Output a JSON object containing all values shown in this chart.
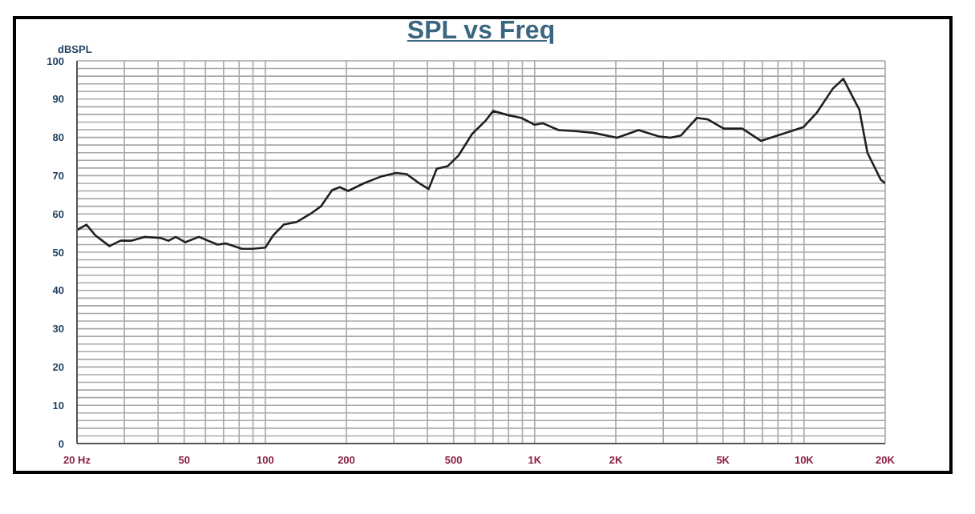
{
  "chart_data": {
    "type": "line",
    "title": "SPL vs Freq",
    "ylabel": "dBSPL",
    "log": "x",
    "grid": true,
    "x": [
      20,
      21.7,
      23.4,
      26.4,
      29,
      31.8,
      35.6,
      40.9,
      43.8,
      46.5,
      50.5,
      56.7,
      66.5,
      71.3,
      81.9,
      89.8,
      100,
      107,
      117,
      131,
      147,
      161,
      177,
      189,
      203,
      232,
      267,
      306,
      335,
      368,
      404,
      433,
      476,
      522,
      586,
      658,
      701,
      797,
      892,
      1000,
      1071,
      1227,
      1439,
      1650,
      2024,
      2429,
      2914,
      3191,
      3493,
      4003,
      4391,
      5030,
      5897,
      6915,
      8317,
      9955,
      11160,
      12770,
      13980,
      16040,
      17180,
      19240,
      20000
    ],
    "series": [
      {
        "color": "#202020",
        "values": [
          55.8,
          57.2,
          54.4,
          51.6,
          53,
          53,
          54,
          53.7,
          53,
          54,
          52.6,
          54,
          52,
          52.3,
          50.9,
          50.9,
          51.2,
          54.4,
          57.2,
          57.9,
          60,
          62,
          66.2,
          67,
          66,
          68,
          69.7,
          70.7,
          70.4,
          68.3,
          66.5,
          71.8,
          72.5,
          75.3,
          80.9,
          84.4,
          86.9,
          85.8,
          85.1,
          83.3,
          83.7,
          81.9,
          81.6,
          81.2,
          79.9,
          81.9,
          80.2,
          79.9,
          80.5,
          85.1,
          84.7,
          82.3,
          82.3,
          79.1,
          80.9,
          82.7,
          86.5,
          92.7,
          95.3,
          87.2,
          76,
          69,
          68
        ]
      }
    ],
    "xlim": [
      20,
      20000
    ],
    "xticks": [
      {
        "value": 20,
        "label": "20 Hz"
      },
      {
        "value": 30,
        "label": null
      },
      {
        "value": 40,
        "label": null
      },
      50,
      {
        "value": 60,
        "label": null
      },
      {
        "value": 70,
        "label": null
      },
      {
        "value": 80,
        "label": null
      },
      {
        "value": 90,
        "label": null
      },
      100,
      200,
      {
        "value": 300,
        "label": null
      },
      {
        "value": 400,
        "label": null
      },
      500,
      {
        "value": 600,
        "label": null
      },
      {
        "value": 700,
        "label": null
      },
      {
        "value": 800,
        "label": null
      },
      {
        "value": 900,
        "label": null
      },
      {
        "value": 1000,
        "label": "1K"
      },
      {
        "value": 2000,
        "label": "2K"
      },
      {
        "value": 3000,
        "label": null
      },
      {
        "value": 4000,
        "label": null
      },
      {
        "value": 5000,
        "label": "5K"
      },
      {
        "value": 6000,
        "label": null
      },
      {
        "value": 7000,
        "label": null
      },
      {
        "value": 8000,
        "label": null
      },
      {
        "value": 9000,
        "label": null
      },
      {
        "value": 10000,
        "label": "10K"
      },
      {
        "value": 20000,
        "label": "20K"
      }
    ],
    "ylim": [
      0,
      100
    ],
    "yticks": [
      0,
      {
        "value": 2,
        "label": null
      },
      {
        "value": 4,
        "label": null
      },
      {
        "value": 6,
        "label": null
      },
      {
        "value": 8,
        "label": null
      },
      10,
      {
        "value": 12,
        "label": null
      },
      {
        "value": 14,
        "label": null
      },
      {
        "value": 16,
        "label": null
      },
      {
        "value": 18,
        "label": null
      },
      20,
      {
        "value": 22,
        "label": null
      },
      {
        "value": 24,
        "label": null
      },
      {
        "value": 26,
        "label": null
      },
      {
        "value": 28,
        "label": null
      },
      30,
      {
        "value": 32,
        "label": null
      },
      {
        "value": 34,
        "label": null
      },
      {
        "value": 36,
        "label": null
      },
      {
        "value": 38,
        "label": null
      },
      40,
      {
        "value": 42,
        "label": null
      },
      {
        "value": 44,
        "label": null
      },
      {
        "value": 46,
        "label": null
      },
      {
        "value": 48,
        "label": null
      },
      50,
      {
        "value": 52,
        "label": null
      },
      {
        "value": 54,
        "label": null
      },
      {
        "value": 56,
        "label": null
      },
      {
        "value": 58,
        "label": null
      },
      60,
      {
        "value": 62,
        "label": null
      },
      {
        "value": 64,
        "label": null
      },
      {
        "value": 66,
        "label": null
      },
      {
        "value": 68,
        "label": null
      },
      70,
      {
        "value": 72,
        "label": null
      },
      {
        "value": 74,
        "label": null
      },
      {
        "value": 76,
        "label": null
      },
      {
        "value": 78,
        "label": null
      },
      80,
      {
        "value": 82,
        "label": null
      },
      {
        "value": 84,
        "label": null
      },
      {
        "value": 86,
        "label": null
      },
      {
        "value": 88,
        "label": null
      },
      90,
      {
        "value": 92,
        "label": null
      },
      {
        "value": 94,
        "label": null
      },
      {
        "value": 96,
        "label": null
      },
      {
        "value": 98,
        "label": null
      },
      100
    ]
  }
}
